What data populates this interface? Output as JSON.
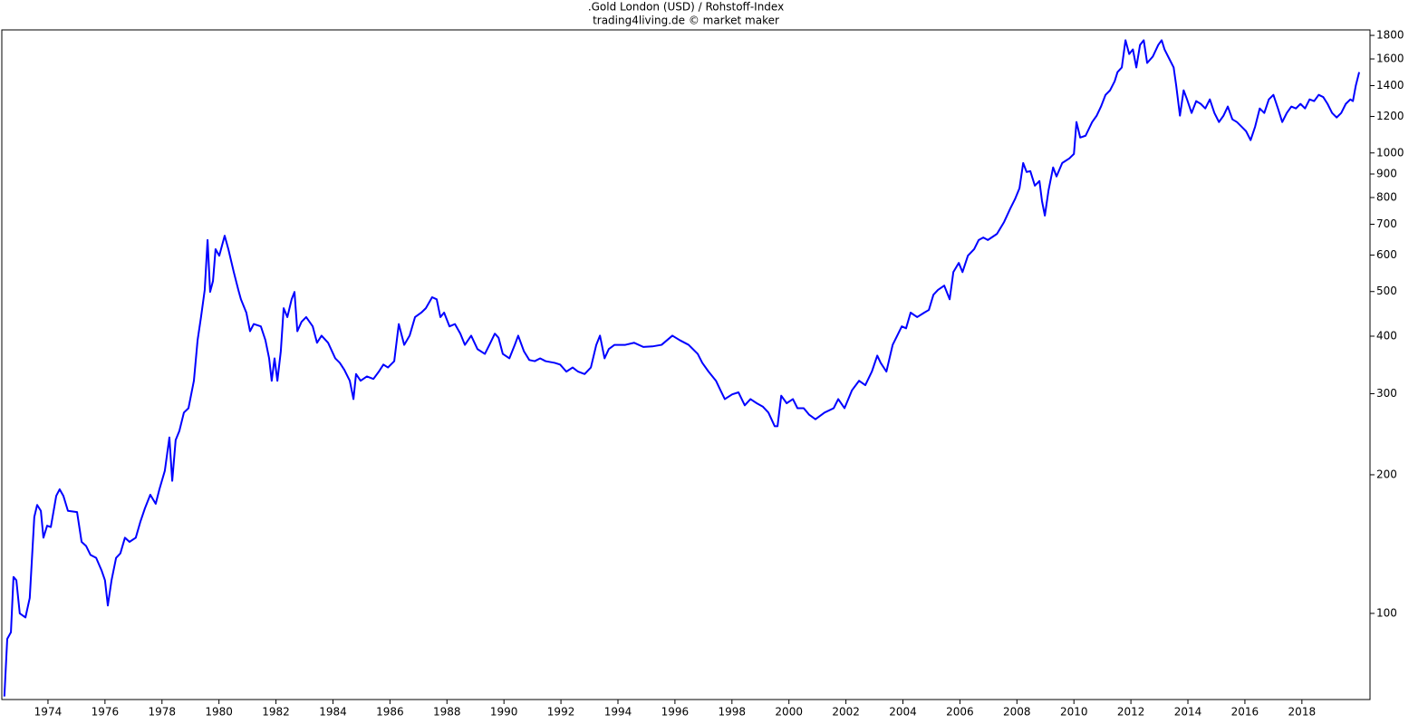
{
  "chart_data": {
    "type": "line",
    "title": ".Gold London (USD) / Rohstoff-Index",
    "subtitle": "trading4living.de © market maker",
    "log_scale": true,
    "color": "#0000ff",
    "grid": false,
    "xlim": [
      1972.38,
      2020.39
    ],
    "ylim": [
      65,
      1850
    ],
    "xticks": [
      1974,
      1976,
      1978,
      1980,
      1982,
      1984,
      1986,
      1988,
      1990,
      1992,
      1994,
      1996,
      1998,
      2000,
      2002,
      2004,
      2006,
      2008,
      2010,
      2012,
      2014,
      2016,
      2018
    ],
    "yticks": [
      100,
      200,
      300,
      400,
      500,
      600,
      700,
      800,
      900,
      1000,
      1200,
      1400,
      1600,
      1800
    ],
    "x": [
      1972.47,
      1972.57,
      1972.7,
      1972.79,
      1972.89,
      1973.01,
      1973.21,
      1973.36,
      1973.52,
      1973.62,
      1973.75,
      1973.84,
      1973.97,
      1974.1,
      1974.29,
      1974.41,
      1974.54,
      1974.7,
      1975.02,
      1975.18,
      1975.34,
      1975.49,
      1975.69,
      1975.88,
      1976.0,
      1976.1,
      1976.23,
      1976.39,
      1976.54,
      1976.7,
      1976.86,
      1977.08,
      1977.24,
      1977.4,
      1977.59,
      1977.78,
      1977.91,
      1978.1,
      1978.26,
      1978.36,
      1978.48,
      1978.61,
      1978.77,
      1978.93,
      1979.12,
      1979.25,
      1979.37,
      1979.5,
      1979.6,
      1979.69,
      1979.79,
      1979.88,
      1980.01,
      1980.2,
      1980.33,
      1980.52,
      1980.68,
      1980.77,
      1980.96,
      1981.09,
      1981.22,
      1981.47,
      1981.63,
      1981.76,
      1981.85,
      1981.95,
      1982.05,
      1982.17,
      1982.27,
      1982.4,
      1982.55,
      1982.65,
      1982.75,
      1982.9,
      1983.06,
      1983.29,
      1983.44,
      1983.6,
      1983.83,
      1984.08,
      1984.24,
      1984.4,
      1984.59,
      1984.72,
      1984.81,
      1984.97,
      1985.19,
      1985.42,
      1985.61,
      1985.77,
      1985.93,
      1986.15,
      1986.31,
      1986.5,
      1986.69,
      1986.88,
      1987.1,
      1987.26,
      1987.48,
      1987.64,
      1987.77,
      1987.9,
      1988.09,
      1988.28,
      1988.47,
      1988.63,
      1988.85,
      1989.07,
      1989.33,
      1989.49,
      1989.68,
      1989.81,
      1989.96,
      1990.19,
      1990.38,
      1990.5,
      1990.7,
      1990.89,
      1991.08,
      1991.27,
      1991.46,
      1991.78,
      1991.97,
      1992.19,
      1992.41,
      1992.6,
      1992.83,
      1993.05,
      1993.24,
      1993.37,
      1993.53,
      1993.68,
      1993.88,
      1994.26,
      1994.57,
      1994.89,
      1995.21,
      1995.53,
      1995.91,
      1996.17,
      1996.48,
      1996.8,
      1996.96,
      1997.18,
      1997.44,
      1997.6,
      1997.75,
      1998.01,
      1998.23,
      1998.45,
      1998.65,
      1998.87,
      1999.09,
      1999.28,
      1999.5,
      1999.6,
      1999.73,
      1999.92,
      2000.14,
      2000.3,
      2000.52,
      2000.71,
      2000.93,
      2001.25,
      2001.57,
      2001.73,
      2001.95,
      2002.21,
      2002.46,
      2002.68,
      2002.91,
      2003.1,
      2003.22,
      2003.42,
      2003.64,
      2003.8,
      2003.96,
      2004.11,
      2004.27,
      2004.5,
      2004.75,
      2004.91,
      2005.07,
      2005.23,
      2005.45,
      2005.64,
      2005.77,
      2005.96,
      2006.09,
      2006.28,
      2006.5,
      2006.66,
      2006.82,
      2006.98,
      2007.3,
      2007.55,
      2007.77,
      2007.93,
      2008.09,
      2008.22,
      2008.34,
      2008.47,
      2008.63,
      2008.79,
      2008.88,
      2008.98,
      2009.11,
      2009.27,
      2009.39,
      2009.59,
      2009.84,
      2010.0,
      2010.09,
      2010.22,
      2010.41,
      2010.64,
      2010.8,
      2010.95,
      2011.11,
      2011.27,
      2011.43,
      2011.53,
      2011.68,
      2011.81,
      2011.94,
      2012.07,
      2012.19,
      2012.32,
      2012.45,
      2012.57,
      2012.77,
      2012.96,
      2013.08,
      2013.18,
      2013.34,
      2013.5,
      2013.59,
      2013.72,
      2013.85,
      2013.97,
      2014.13,
      2014.29,
      2014.45,
      2014.61,
      2014.77,
      2014.93,
      2015.09,
      2015.25,
      2015.4,
      2015.56,
      2015.72,
      2015.88,
      2016.04,
      2016.2,
      2016.36,
      2016.52,
      2016.68,
      2016.84,
      2017.0,
      2017.16,
      2017.31,
      2017.47,
      2017.63,
      2017.79,
      2017.95,
      2018.11,
      2018.27,
      2018.43,
      2018.59,
      2018.75,
      2018.9,
      2019.06,
      2019.22,
      2019.38,
      2019.54,
      2019.7,
      2019.79,
      2019.89,
      2020.01
    ],
    "values": [
      66,
      88,
      91,
      120,
      118,
      100,
      98,
      108,
      162,
      172,
      167,
      146,
      155,
      154,
      180,
      186,
      180,
      167,
      166,
      143,
      140,
      134,
      132,
      124,
      118,
      104,
      118,
      132,
      135,
      146,
      143,
      146,
      158,
      169,
      181,
      173,
      186,
      204,
      241,
      194,
      238,
      249,
      273,
      279,
      320,
      392,
      440,
      504,
      647,
      499,
      527,
      618,
      598,
      661,
      618,
      551,
      504,
      481,
      450,
      410,
      425,
      420,
      392,
      358,
      320,
      358,
      320,
      371,
      460,
      440,
      481,
      499,
      410,
      430,
      440,
      420,
      387,
      401,
      387,
      358,
      350,
      338,
      320,
      292,
      331,
      320,
      327,
      323,
      335,
      347,
      342,
      353,
      425,
      383,
      401,
      440,
      450,
      460,
      486,
      481,
      440,
      450,
      420,
      425,
      405,
      383,
      401,
      375,
      366,
      383,
      405,
      397,
      366,
      358,
      383,
      401,
      371,
      355,
      353,
      358,
      353,
      350,
      347,
      335,
      342,
      335,
      331,
      342,
      383,
      401,
      358,
      375,
      383,
      383,
      387,
      379,
      380,
      383,
      401,
      392,
      383,
      366,
      350,
      335,
      320,
      305,
      292,
      299,
      302,
      283,
      292,
      286,
      281,
      273,
      255,
      255,
      297,
      286,
      292,
      279,
      279,
      270,
      264,
      273,
      279,
      292,
      279,
      305,
      320,
      313,
      335,
      363,
      350,
      335,
      383,
      401,
      420,
      416,
      450,
      440,
      450,
      456,
      492,
      504,
      515,
      481,
      551,
      577,
      551,
      598,
      618,
      647,
      655,
      647,
      667,
      708,
      758,
      793,
      838,
      951,
      909,
      913,
      849,
      869,
      786,
      731,
      830,
      930,
      889,
      951,
      973,
      995,
      1167,
      1080,
      1090,
      1167,
      1205,
      1261,
      1337,
      1368,
      1431,
      1498,
      1533,
      1757,
      1640,
      1678,
      1533,
      1716,
      1757,
      1568,
      1620,
      1716,
      1757,
      1678,
      1604,
      1533,
      1399,
      1205,
      1368,
      1307,
      1221,
      1296,
      1278,
      1249,
      1307,
      1221,
      1167,
      1205,
      1261,
      1183,
      1167,
      1141,
      1115,
      1066,
      1141,
      1249,
      1221,
      1307,
      1337,
      1249,
      1167,
      1221,
      1261,
      1249,
      1278,
      1249,
      1307,
      1296,
      1337,
      1322,
      1278,
      1221,
      1194,
      1221,
      1278,
      1307,
      1296,
      1399,
      1498
    ]
  }
}
